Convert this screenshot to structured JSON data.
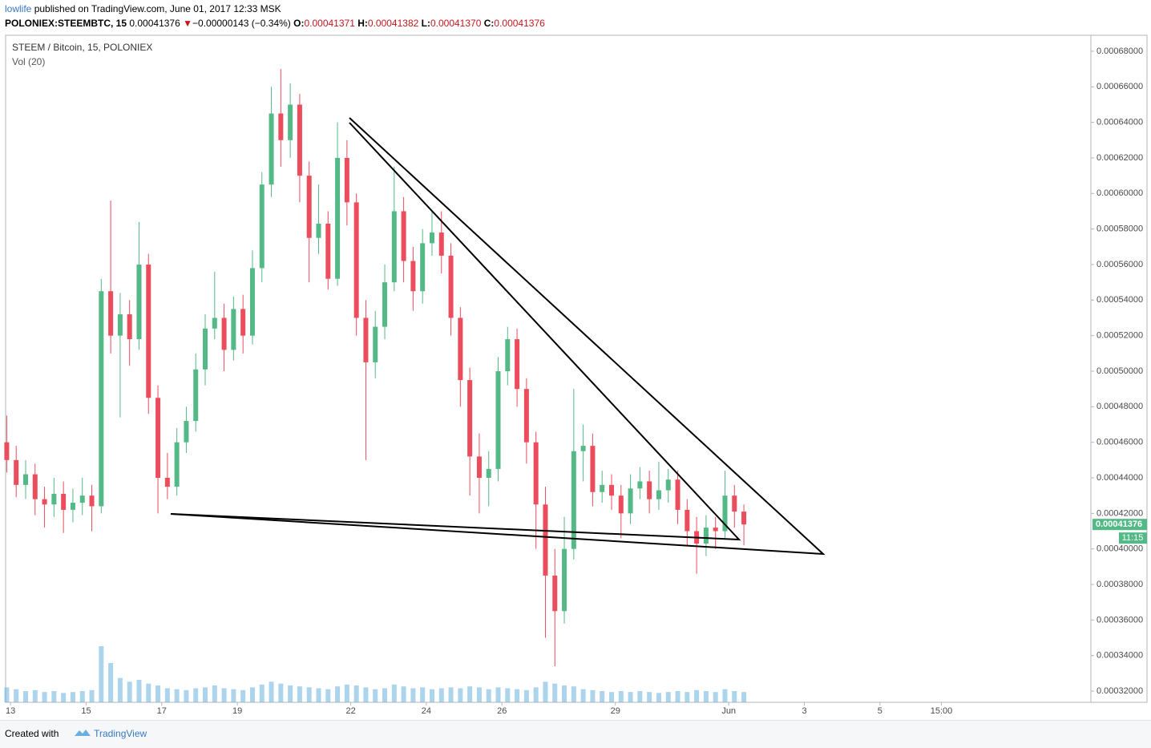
{
  "header": {
    "author": "lowlife",
    "published": "published on TradingView.com, June 01, 2017 12:33 MSK",
    "symbol": "POLONIEX:STEEMBTC, 15",
    "last": "0.00041376",
    "change_arrow": "▼",
    "change": "−0.00000143 (−0.34%)",
    "open_label": "O:",
    "open": "0.00041371",
    "high_label": "H:",
    "high": "0.00041382",
    "low_label": "L:",
    "low": "0.00041370",
    "close_label": "C:",
    "close": "0.00041376"
  },
  "chart_data": {
    "type": "candlestick",
    "title": "STEEM / Bitcoin, 15, POLONIEX",
    "volume_label": "Vol (20)",
    "x": [
      12.9,
      13.15,
      13.4,
      13.65,
      13.9,
      14.15,
      14.4,
      14.65,
      14.9,
      15.15,
      15.4,
      15.65,
      15.9,
      16.15,
      16.4,
      16.65,
      16.9,
      17.15,
      17.4,
      17.65,
      17.9,
      18.15,
      18.4,
      18.65,
      18.9,
      19.15,
      19.4,
      19.65,
      19.9,
      20.15,
      20.4,
      20.65,
      20.9,
      21.15,
      21.4,
      21.65,
      21.9,
      22.15,
      22.4,
      22.65,
      22.9,
      23.15,
      23.4,
      23.65,
      23.9,
      24.15,
      24.4,
      24.65,
      24.9,
      25.15,
      25.4,
      25.65,
      25.9,
      26.15,
      26.4,
      26.65,
      26.9,
      27.15,
      27.4,
      27.65,
      27.9,
      28.15,
      28.4,
      28.65,
      28.9,
      29.15,
      29.4,
      29.65,
      29.9,
      30.15,
      30.4,
      30.65,
      30.9,
      31.15,
      31.4,
      31.65,
      31.9,
      32.15,
      32.4
    ],
    "open": [
      0.00046,
      0.00045,
      0.000436,
      0.000442,
      0.000428,
      0.000425,
      0.000431,
      0.000422,
      0.000426,
      0.00043,
      0.000424,
      0.000545,
      0.00052,
      0.000532,
      0.000518,
      0.00056,
      0.000485,
      0.00044,
      0.000435,
      0.00046,
      0.000472,
      0.000501,
      0.000524,
      0.00053,
      0.000512,
      0.000535,
      0.00052,
      0.000558,
      0.000605,
      0.000645,
      0.00063,
      0.00065,
      0.00061,
      0.000575,
      0.000583,
      0.000552,
      0.00062,
      0.000595,
      0.00053,
      0.000505,
      0.000525,
      0.00055,
      0.00059,
      0.000562,
      0.000545,
      0.000572,
      0.000578,
      0.000565,
      0.00053,
      0.000495,
      0.000452,
      0.00044,
      0.000445,
      0.0005,
      0.000518,
      0.00049,
      0.00046,
      0.000425,
      0.000385,
      0.000365,
      0.0004,
      0.000455,
      0.000458,
      0.000432,
      0.000436,
      0.00043,
      0.00042,
      0.000434,
      0.000438,
      0.000428,
      0.000433,
      0.000439,
      0.000422,
      0.00041,
      0.000403,
      0.000412,
      0.00041,
      0.00043,
      0.000421
    ],
    "high": [
      0.000475,
      0.000458,
      0.00045,
      0.000448,
      0.000435,
      0.00044,
      0.000438,
      0.000434,
      0.00044,
      0.000436,
      0.000552,
      0.000596,
      0.000544,
      0.00054,
      0.000584,
      0.000566,
      0.000492,
      0.000454,
      0.000468,
      0.00048,
      0.00051,
      0.000532,
      0.000556,
      0.000538,
      0.000542,
      0.000543,
      0.000568,
      0.000612,
      0.00066,
      0.00067,
      0.000662,
      0.000656,
      0.000618,
      0.000605,
      0.00059,
      0.00064,
      0.00063,
      0.0006,
      0.00054,
      0.000534,
      0.00056,
      0.000615,
      0.000598,
      0.00057,
      0.00058,
      0.00059,
      0.00059,
      0.000572,
      0.000536,
      0.000502,
      0.000465,
      0.000455,
      0.000508,
      0.000525,
      0.000524,
      0.000496,
      0.000466,
      0.000435,
      0.0004,
      0.000418,
      0.00049,
      0.00047,
      0.000465,
      0.000444,
      0.000442,
      0.000436,
      0.000442,
      0.000446,
      0.000444,
      0.000449,
      0.000445,
      0.000444,
      0.000428,
      0.000418,
      0.000419,
      0.000418,
      0.000444,
      0.000436,
      0.000425
    ],
    "low": [
      0.000443,
      0.000429,
      0.000428,
      0.000419,
      0.000412,
      0.000418,
      0.000409,
      0.000415,
      0.000419,
      0.00041,
      0.00042,
      0.00051,
      0.000474,
      0.000503,
      0.000512,
      0.000476,
      0.00042,
      0.000428,
      0.00043,
      0.000454,
      0.000466,
      0.000492,
      0.000518,
      0.0005,
      0.000506,
      0.00051,
      0.000515,
      0.00055,
      0.000598,
      0.000615,
      0.00062,
      0.000595,
      0.00055,
      0.000566,
      0.000546,
      0.000548,
      0.000582,
      0.00052,
      0.00045,
      0.000496,
      0.000518,
      0.000545,
      0.00055,
      0.000534,
      0.000538,
      0.000565,
      0.000555,
      0.00052,
      0.00048,
      0.00043,
      0.00042,
      0.000424,
      0.000438,
      0.000492,
      0.00048,
      0.000448,
      0.0004,
      0.00035,
      0.000334,
      0.000358,
      0.000394,
      0.000438,
      0.000424,
      0.000426,
      0.000422,
      0.000406,
      0.000414,
      0.000428,
      0.00042,
      0.000422,
      0.000426,
      0.000414,
      0.000402,
      0.000386,
      0.000396,
      0.0004,
      0.000406,
      0.000412,
      0.000402
    ],
    "close": [
      0.00045,
      0.000436,
      0.000442,
      0.000428,
      0.000425,
      0.000431,
      0.000422,
      0.000426,
      0.00043,
      0.000424,
      0.000545,
      0.00052,
      0.000532,
      0.000518,
      0.00056,
      0.000485,
      0.00044,
      0.000435,
      0.00046,
      0.000472,
      0.000501,
      0.000524,
      0.00053,
      0.000512,
      0.000535,
      0.00052,
      0.000558,
      0.000605,
      0.000645,
      0.00063,
      0.00065,
      0.00061,
      0.000575,
      0.000583,
      0.000552,
      0.00062,
      0.000595,
      0.00053,
      0.000505,
      0.000525,
      0.00055,
      0.00059,
      0.000562,
      0.000545,
      0.000572,
      0.000578,
      0.000565,
      0.00053,
      0.000495,
      0.000452,
      0.00044,
      0.000445,
      0.0005,
      0.000518,
      0.00049,
      0.00046,
      0.000425,
      0.000385,
      0.000365,
      0.0004,
      0.000455,
      0.000458,
      0.000432,
      0.000436,
      0.00043,
      0.00042,
      0.000434,
      0.000438,
      0.000428,
      0.000433,
      0.000439,
      0.000422,
      0.00041,
      0.000403,
      0.000412,
      0.00041,
      0.00043,
      0.000421,
      0.00041376
    ],
    "volume": [
      1.6,
      1.4,
      1.2,
      1.3,
      1.1,
      1.2,
      1.0,
      1.1,
      1.2,
      1.3,
      6.0,
      4.2,
      2.6,
      2.2,
      2.4,
      2.0,
      1.8,
      1.5,
      1.4,
      1.3,
      1.5,
      1.6,
      1.8,
      1.5,
      1.4,
      1.3,
      1.6,
      1.9,
      2.2,
      2.0,
      1.8,
      1.7,
      1.6,
      1.5,
      1.4,
      1.7,
      1.9,
      1.8,
      1.6,
      1.4,
      1.5,
      1.9,
      1.7,
      1.5,
      1.6,
      1.4,
      1.5,
      1.6,
      1.5,
      1.7,
      1.6,
      1.4,
      1.6,
      1.5,
      1.4,
      1.3,
      1.6,
      2.2,
      2.0,
      1.8,
      1.7,
      1.4,
      1.3,
      1.2,
      1.1,
      1.2,
      1.1,
      1.2,
      1.1,
      1.0,
      1.1,
      1.2,
      1.1,
      1.3,
      1.2,
      1.1,
      1.4,
      1.2,
      1.1
    ],
    "xlim": [
      12.87,
      41.58
    ],
    "xticks": [
      13,
      15,
      17,
      19,
      22,
      24,
      26,
      29,
      {
        "value": 32,
        "label": "Jun"
      },
      {
        "value": 34,
        "label": "3"
      },
      {
        "value": 36,
        "label": "5"
      },
      {
        "value": 37.625,
        "label": "15:00"
      }
    ],
    "ylim": [
      0.0003137,
      0.000689
    ],
    "yticks": [
      {
        "value": 0.00032,
        "label": "0.00032000"
      },
      {
        "value": 0.00034,
        "label": "0.00034000"
      },
      {
        "value": 0.00036,
        "label": "0.00036000"
      },
      {
        "value": 0.00038,
        "label": "0.00038000"
      },
      {
        "value": 0.0004,
        "label": "0.00040000"
      },
      {
        "value": 0.00042,
        "label": "0.00042000"
      },
      {
        "value": 0.00044,
        "label": "0.00044000"
      },
      {
        "value": 0.00046,
        "label": "0.00046000"
      },
      {
        "value": 0.00048,
        "label": "0.00048000"
      },
      {
        "value": 0.0005,
        "label": "0.00050000"
      },
      {
        "value": 0.00052,
        "label": "0.00052000"
      },
      {
        "value": 0.00054,
        "label": "0.00054000"
      },
      {
        "value": 0.00056,
        "label": "0.00056000"
      },
      {
        "value": 0.00058,
        "label": "0.00058000"
      },
      {
        "value": 0.0006,
        "label": "0.00060000"
      },
      {
        "value": 0.00062,
        "label": "0.00062000"
      },
      {
        "value": 0.00064,
        "label": "0.00064000"
      },
      {
        "value": 0.00066,
        "label": "0.00066000"
      },
      {
        "value": 0.00068,
        "label": "0.00068000"
      }
    ],
    "grid": true,
    "up_color": "#53b987",
    "down_color": "#eb4d5c",
    "volume_color": "#6ab0de",
    "last_price": 0.00041376,
    "last_time": "11:15"
  },
  "footer": {
    "created": "Created with",
    "brand": "TradingView"
  }
}
